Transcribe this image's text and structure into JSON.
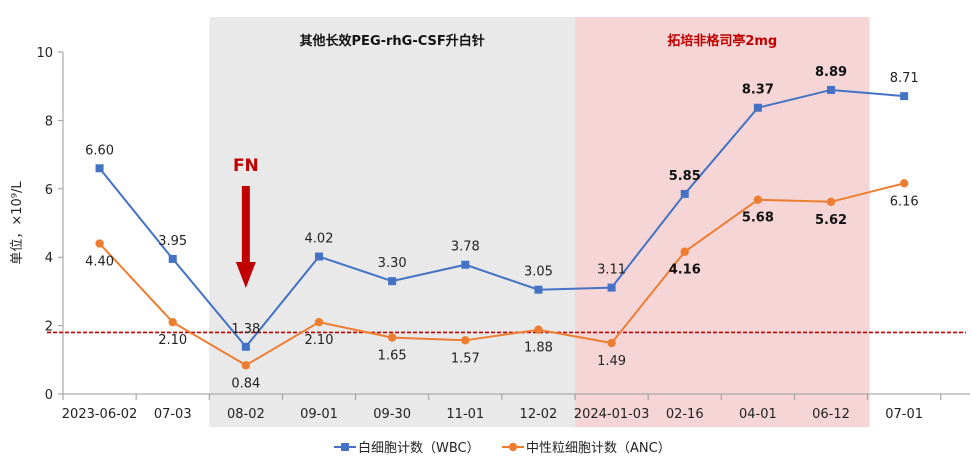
{
  "chart_data": {
    "type": "line",
    "categories": [
      "2023-06-02",
      "07-03",
      "08-02",
      "09-01",
      "09-30",
      "11-01",
      "12-02",
      "2024-01-03",
      "02-16",
      "04-01",
      "06-12",
      "07-01"
    ],
    "series": [
      {
        "name": "白细胞计数（WBC）",
        "color": "#4472c4",
        "marker": "square",
        "values": [
          6.6,
          3.95,
          1.38,
          4.02,
          3.3,
          3.78,
          3.05,
          3.11,
          5.85,
          8.37,
          8.89,
          8.71
        ],
        "labels": [
          "6.60",
          "3.95",
          "1.38",
          "4.02",
          "3.30",
          "3.78",
          "3.05",
          "3.11",
          "5.85",
          "8.37",
          "8.89",
          "8.71"
        ],
        "bold_labels": [
          false,
          false,
          false,
          false,
          false,
          false,
          false,
          false,
          true,
          true,
          true,
          false
        ]
      },
      {
        "name": "中性粒细胞计数（ANC）",
        "color": "#ed7d31",
        "marker": "circle",
        "values": [
          4.4,
          2.1,
          0.84,
          2.1,
          1.65,
          1.57,
          1.88,
          1.49,
          4.16,
          5.68,
          5.62,
          6.16
        ],
        "labels": [
          "4.40",
          "2.10",
          "0.84",
          "2.10",
          "1.65",
          "1.57",
          "1.88",
          "1.49",
          "4.16",
          "5.68",
          "5.62",
          "6.16"
        ],
        "bold_labels": [
          false,
          false,
          false,
          false,
          false,
          false,
          false,
          false,
          true,
          true,
          true,
          false
        ]
      }
    ],
    "ylabel": "单位，×10⁹/L",
    "ylim": [
      0,
      10
    ],
    "yticks": [
      "0",
      "2",
      "4",
      "6",
      "8",
      "10"
    ],
    "reference_line": {
      "value": 1.8,
      "color": "#c00000",
      "style": "dashed"
    },
    "bands": [
      {
        "label": "其他长效PEG-rhG-CSF升白针",
        "from_index": 2,
        "to_index": 6,
        "color": "#e9e9e9",
        "label_color": "#111111"
      },
      {
        "label": "拓培非格司亭2mg",
        "from_index": 7,
        "to_index": 10,
        "color": "#f5d5d5",
        "label_color": "#c00000"
      }
    ],
    "annotation": {
      "text": "FN",
      "at_index": 2,
      "color": "#c00000"
    },
    "legend": "bottom",
    "grid": false
  }
}
